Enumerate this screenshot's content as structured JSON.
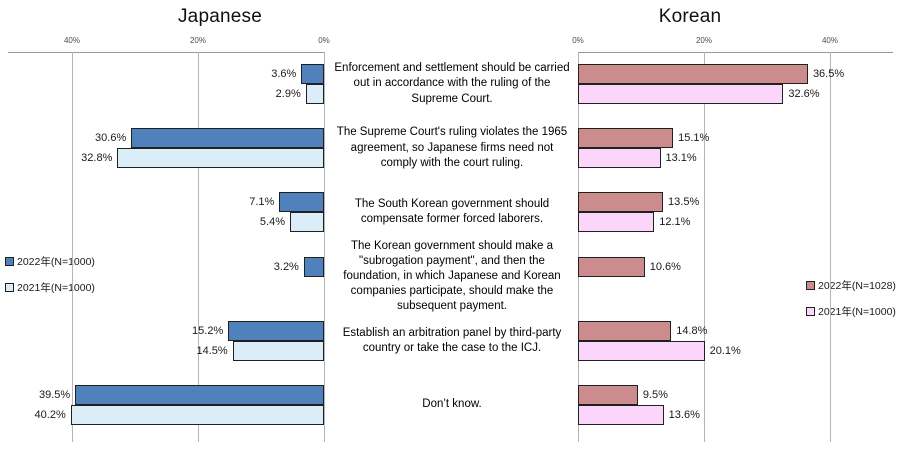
{
  "chart_data": {
    "type": "bar",
    "orientation": "horizontal-butterfly",
    "title_left": "Japanese",
    "title_right": "Korean",
    "categories": [
      "Enforcement and settlement should be carried out in accordance with the ruling of the Supreme Court.",
      "The Supreme Court's ruling violates the 1965 agreement, so Japanese firms need not comply with the court ruling.",
      "The South Korean government should compensate former forced laborers.",
      "The Korean government should make a \"subrogation payment\", and then the foundation, in which Japanese and Korean companies participate, should make the subsequent payment.",
      "Establish an arbitration panel by third-party country or take the case to the ICJ.",
      "Don’t know."
    ],
    "left": {
      "title": "Japanese",
      "axis_ticks": [
        "40%",
        "20%",
        "0%"
      ],
      "series": [
        {
          "name": "2022年(N=1000)",
          "color": "#4F81BD",
          "values": [
            3.6,
            30.6,
            7.1,
            3.2,
            15.2,
            39.5
          ]
        },
        {
          "name": "2021年(N=1000)",
          "color": "#DAEDF8",
          "values": [
            2.9,
            32.8,
            5.4,
            null,
            14.5,
            40.2
          ]
        }
      ]
    },
    "right": {
      "title": "Korean",
      "axis_ticks": [
        "0%",
        "20%",
        "40%"
      ],
      "series": [
        {
          "name": "2022年(N=1028)",
          "color": "#CC8C8E",
          "values": [
            36.5,
            15.1,
            13.5,
            10.6,
            14.8,
            9.5
          ]
        },
        {
          "name": "2021年(N=1000)",
          "color": "#FBD5FA",
          "values": [
            32.6,
            13.1,
            12.1,
            null,
            20.1,
            13.6
          ]
        }
      ]
    },
    "axis_range_pct": [
      0,
      40
    ],
    "grid": true,
    "legend_position": {
      "left": "outer-left-middle",
      "right": "outer-right-middle"
    },
    "colors": {
      "bar_border": "#202020",
      "gridline": "#b5b5b5",
      "axisline": "#9a9a9a"
    }
  }
}
